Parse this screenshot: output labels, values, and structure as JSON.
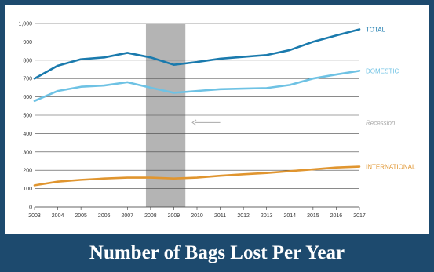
{
  "caption": "Number of Bags Lost Per Year",
  "chart_data": {
    "type": "line",
    "x": [
      2003,
      2004,
      2005,
      2006,
      2007,
      2008,
      2009,
      2010,
      2011,
      2012,
      2013,
      2014,
      2015,
      2016,
      2017
    ],
    "xlim": [
      2003,
      2017
    ],
    "ylim": [
      0,
      1000
    ],
    "yticks": [
      0,
      100,
      200,
      300,
      400,
      500,
      600,
      700,
      800,
      900,
      1000
    ],
    "ytick_labels": [
      "0",
      "100",
      "200",
      "300",
      "400",
      "500",
      "600",
      "700",
      "800",
      "900",
      "1,000"
    ],
    "grid": true,
    "series": [
      {
        "name": "TOTAL",
        "color": "#1a7aad",
        "values": [
          700,
          770,
          805,
          815,
          840,
          815,
          775,
          790,
          808,
          818,
          828,
          855,
          900,
          935,
          968
        ]
      },
      {
        "name": "DOMESTIC",
        "color": "#6ec2e4",
        "values": [
          578,
          632,
          655,
          662,
          680,
          650,
          622,
          632,
          642,
          645,
          648,
          665,
          700,
          722,
          742
        ]
      },
      {
        "name": "INTERNATIONAL",
        "color": "#e0952f",
        "values": [
          118,
          138,
          148,
          155,
          160,
          160,
          155,
          160,
          170,
          178,
          185,
          195,
          205,
          215,
          220
        ]
      }
    ],
    "shaded_region": {
      "x_start": 2007.8,
      "x_end": 2009.5,
      "color": "#b4b4b4"
    },
    "annotation": {
      "text": "Recession",
      "color": "#aaaaaa",
      "arrow_from_x": 2011.0,
      "arrow_to_x": 2009.8,
      "y": 460
    }
  }
}
